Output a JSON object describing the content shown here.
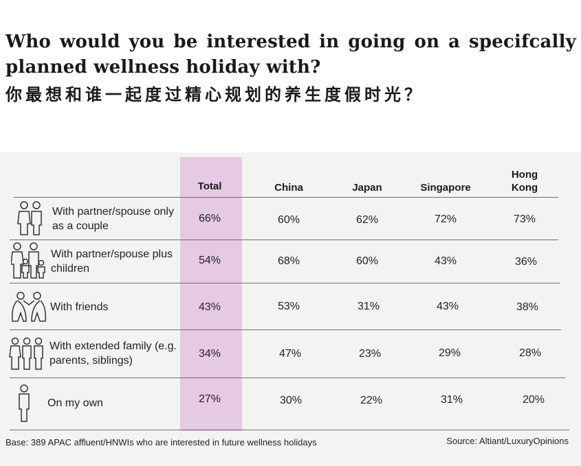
{
  "title_en": "Who would you be interested in going on a specifcally planned wellness holiday with?",
  "title_zh": "你最想和谁一起度过精心规划的养生度假时光？",
  "footer": {
    "base": "Base: 389 APAC affluent/HNWIs who are interested in future wellness holidays",
    "source": "Source: Altiant/LuxuryOpinions"
  },
  "colors": {
    "highlight": "#e6c9e3",
    "panel": "#f3f3f1",
    "rule": "#6d6d6d"
  },
  "chart_data": {
    "type": "table",
    "columns": [
      "Total",
      "China",
      "Japan",
      "Singapore",
      "Hong Kong"
    ],
    "highlight_column": "Total",
    "rows": [
      {
        "label": "With partner/spouse only as a couple",
        "icon": "couple-icon",
        "values": [
          "66%",
          "60%",
          "62%",
          "72%",
          "73%"
        ]
      },
      {
        "label": "With partner/spouse plus children",
        "icon": "family-children-icon",
        "values": [
          "54%",
          "68%",
          "60%",
          "43%",
          "36%"
        ]
      },
      {
        "label": "With friends",
        "icon": "friends-icon",
        "values": [
          "43%",
          "53%",
          "31%",
          "43%",
          "38%"
        ]
      },
      {
        "label": "With extended family (e.g. parents, siblings)",
        "icon": "extended-family-icon",
        "values": [
          "34%",
          "47%",
          "23%",
          "29%",
          "28%"
        ]
      },
      {
        "label": "On my own",
        "icon": "solo-person-icon",
        "values": [
          "27%",
          "30%",
          "22%",
          "31%",
          "20%"
        ]
      }
    ]
  }
}
